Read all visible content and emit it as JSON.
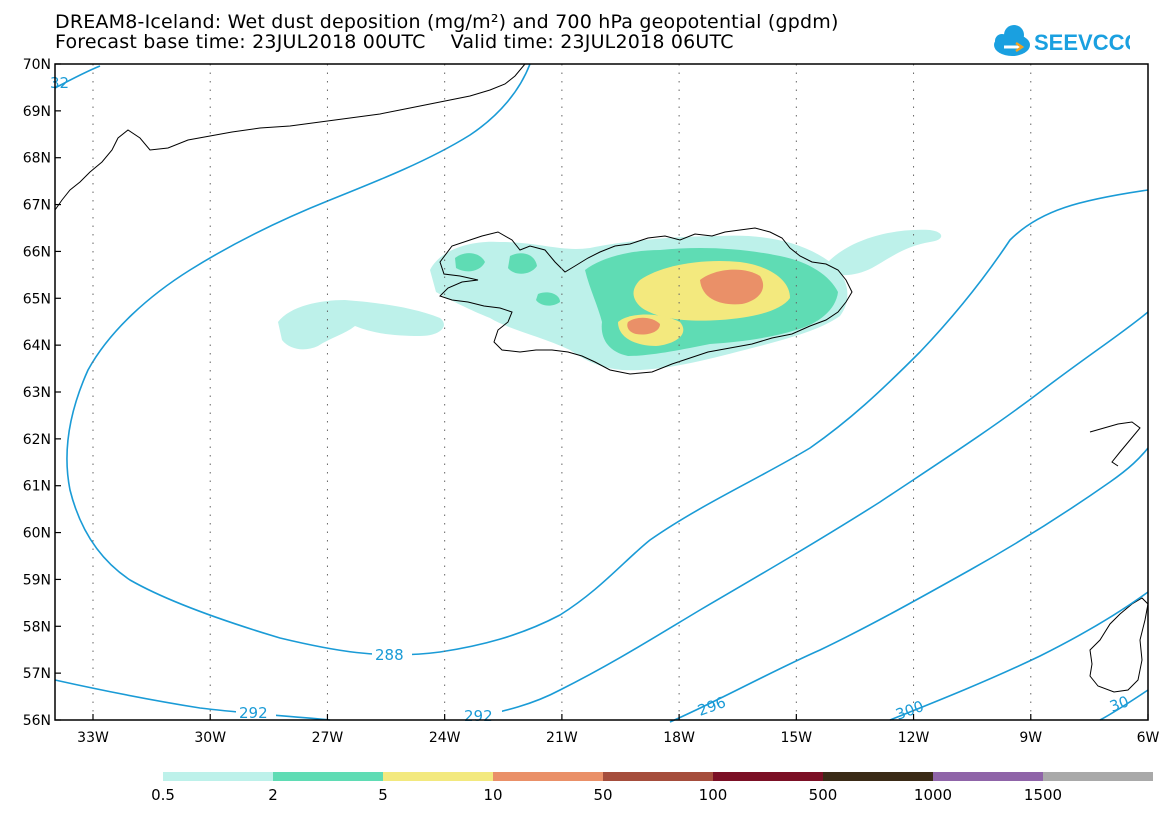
{
  "header": {
    "title_line1": "DREAM8-Iceland: Wet dust deposition (mg/m²) and 700 hPa geopotential (gpdm)",
    "title_line2": "Forecast base time: 23JUL2018 00UTC    Valid time: 23JUL2018 06UTC"
  },
  "logo": {
    "text": "SEEVCCC",
    "color": "#1aa0e0",
    "icon": "cloud-icon"
  },
  "map": {
    "lat_labels": [
      "70N",
      "69N",
      "68N",
      "67N",
      "66N",
      "65N",
      "64N",
      "63N",
      "62N",
      "61N",
      "60N",
      "59N",
      "58N",
      "57N",
      "56N"
    ],
    "lon_labels": [
      "33W",
      "30W",
      "27W",
      "24W",
      "21W",
      "18W",
      "15W",
      "12W",
      "9W",
      "6W"
    ],
    "contour_color": "#1a9bd6",
    "contour_labels": [
      "288",
      "292",
      "292",
      "296",
      "300",
      "32",
      "30"
    ]
  },
  "legend": {
    "colors": [
      "#bdf1ea",
      "#5fdcb4",
      "#f3e97e",
      "#ea9068",
      "#a54d3c",
      "#7b0f25",
      "#3a2a16",
      "#8f64a8",
      "#a9a9a9"
    ],
    "labels": [
      "0.5",
      "2",
      "5",
      "10",
      "50",
      "100",
      "500",
      "1000",
      "1500"
    ]
  }
}
